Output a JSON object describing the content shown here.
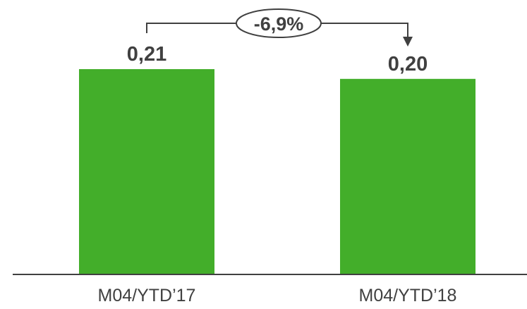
{
  "chart_data": {
    "type": "bar",
    "categories": [
      "M04/YTD’17",
      "M04/YTD’18"
    ],
    "values": [
      0.21,
      0.2
    ],
    "value_labels": [
      "0,21",
      "0,20"
    ],
    "change_annotation": "-6,9%",
    "ylim": [
      0,
      0.21
    ],
    "grid": false,
    "legend": "none",
    "title": "",
    "xlabel": "",
    "ylabel": ""
  },
  "colors": {
    "bar": "#43ae2a",
    "text": "#404040",
    "axis": "#404040"
  }
}
